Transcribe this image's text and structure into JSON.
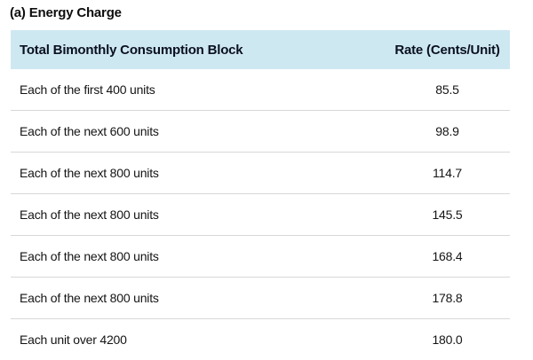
{
  "page": {
    "title": "(a) Energy Charge"
  },
  "table": {
    "columns": [
      {
        "label": "Total Bimonthly Consumption Block"
      },
      {
        "label": "Rate (Cents/Unit)"
      }
    ],
    "rows": [
      {
        "block": "Each of the first 400 units",
        "rate": "85.5"
      },
      {
        "block": "Each of the next 600 units",
        "rate": "98.9"
      },
      {
        "block": "Each of the next 800 units",
        "rate": "114.7"
      },
      {
        "block": "Each of the next 800 units",
        "rate": "145.5"
      },
      {
        "block": "Each of the next 800 units",
        "rate": "168.4"
      },
      {
        "block": "Each of the next 800 units",
        "rate": "178.8"
      },
      {
        "block": "Each unit over 4200",
        "rate": "180.0"
      }
    ]
  },
  "colors": {
    "header_bg": "#cee8f2",
    "divider": "#d8d8d8",
    "text": "#141414",
    "background": "#ffffff"
  }
}
